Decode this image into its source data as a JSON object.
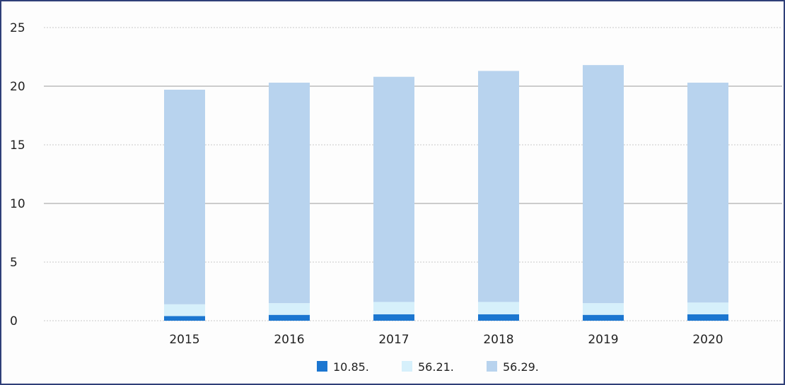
{
  "chart_data": {
    "type": "bar",
    "stacked": true,
    "categories": [
      "2015",
      "2016",
      "2017",
      "2018",
      "2019",
      "2020"
    ],
    "series": [
      {
        "name": "10.85.",
        "color": "#1b76d0",
        "values": [
          0.4,
          0.5,
          0.55,
          0.55,
          0.5,
          0.55
        ]
      },
      {
        "name": "56.21.",
        "color": "#d6f0fb",
        "values": [
          1.0,
          1.0,
          1.05,
          1.05,
          1.0,
          1.0
        ]
      },
      {
        "name": "56.29.",
        "color": "#b8d3ee",
        "values": [
          18.3,
          18.8,
          19.2,
          19.7,
          20.3,
          18.75
        ]
      }
    ],
    "ylim": [
      0,
      25
    ],
    "yticks": [
      0,
      5,
      10,
      15,
      20,
      25
    ],
    "grid": true,
    "legend": "bottom-center",
    "title": "",
    "xlabel": "",
    "ylabel": ""
  }
}
